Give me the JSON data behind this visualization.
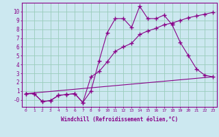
{
  "bg_color": "#cce8f0",
  "grid_color": "#99ccbb",
  "line_color": "#880088",
  "xlabel": "Windchill (Refroidissement éolien,°C)",
  "xlim": [
    -0.5,
    23.5
  ],
  "ylim": [
    -0.8,
    11.0
  ],
  "xticks": [
    0,
    1,
    2,
    3,
    4,
    5,
    6,
    7,
    8,
    9,
    10,
    11,
    12,
    13,
    14,
    15,
    16,
    17,
    18,
    19,
    20,
    21,
    22,
    23
  ],
  "yticks": [
    0,
    1,
    2,
    3,
    4,
    5,
    6,
    7,
    8,
    9,
    10
  ],
  "ytick_labels": [
    "-0",
    "1",
    "2",
    "3",
    "4",
    "5",
    "6",
    "7",
    "8",
    "9",
    "10"
  ],
  "line1_x": [
    0,
    1,
    2,
    3,
    4,
    5,
    6,
    7,
    8,
    9,
    10,
    11,
    12,
    13,
    14,
    15,
    16,
    17,
    18,
    19,
    20,
    21,
    22,
    23
  ],
  "line1_y": [
    0.7,
    0.7,
    -0.2,
    -0.1,
    0.5,
    0.6,
    0.7,
    -0.3,
    1.0,
    4.4,
    7.6,
    9.2,
    9.2,
    8.2,
    10.6,
    9.2,
    9.2,
    9.6,
    8.5,
    6.5,
    5.0,
    3.5,
    2.8,
    2.6
  ],
  "line2_x": [
    0,
    1,
    2,
    3,
    4,
    5,
    6,
    7,
    8,
    9,
    10,
    11,
    12,
    13,
    14,
    15,
    16,
    17,
    18,
    19,
    20,
    21,
    22,
    23
  ],
  "line2_y": [
    0.7,
    0.7,
    -0.2,
    -0.1,
    0.5,
    0.6,
    0.7,
    -0.3,
    2.6,
    3.2,
    4.3,
    5.5,
    6.0,
    6.4,
    7.4,
    7.8,
    8.1,
    8.5,
    8.7,
    9.0,
    9.3,
    9.5,
    9.7,
    9.9
  ],
  "line3_x": [
    0,
    23
  ],
  "line3_y": [
    0.7,
    2.6
  ],
  "label_fontsize": 4.5,
  "ylabel_fontsize": 5.5,
  "xlabel_fontsize": 5.5
}
